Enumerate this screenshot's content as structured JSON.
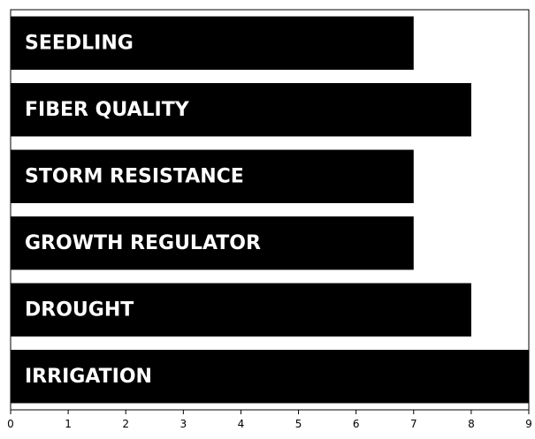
{
  "chart_data": {
    "type": "bar",
    "orientation": "horizontal",
    "categories": [
      "SEEDLING",
      "FIBER QUALITY",
      "STORM RESISTANCE",
      "GROWTH REGULATOR",
      "DROUGHT",
      "IRRIGATION"
    ],
    "values": [
      7,
      8,
      7,
      7,
      8,
      9
    ],
    "title": "",
    "xlabel": "",
    "ylabel": "",
    "xlim": [
      0,
      9
    ],
    "xticks": [
      "0",
      "1",
      "2",
      "3",
      "4",
      "5",
      "6",
      "7",
      "8",
      "9"
    ],
    "grid": false,
    "bar_color": "#000000",
    "label_color": "#ffffff",
    "label_placement": "inside-left"
  }
}
